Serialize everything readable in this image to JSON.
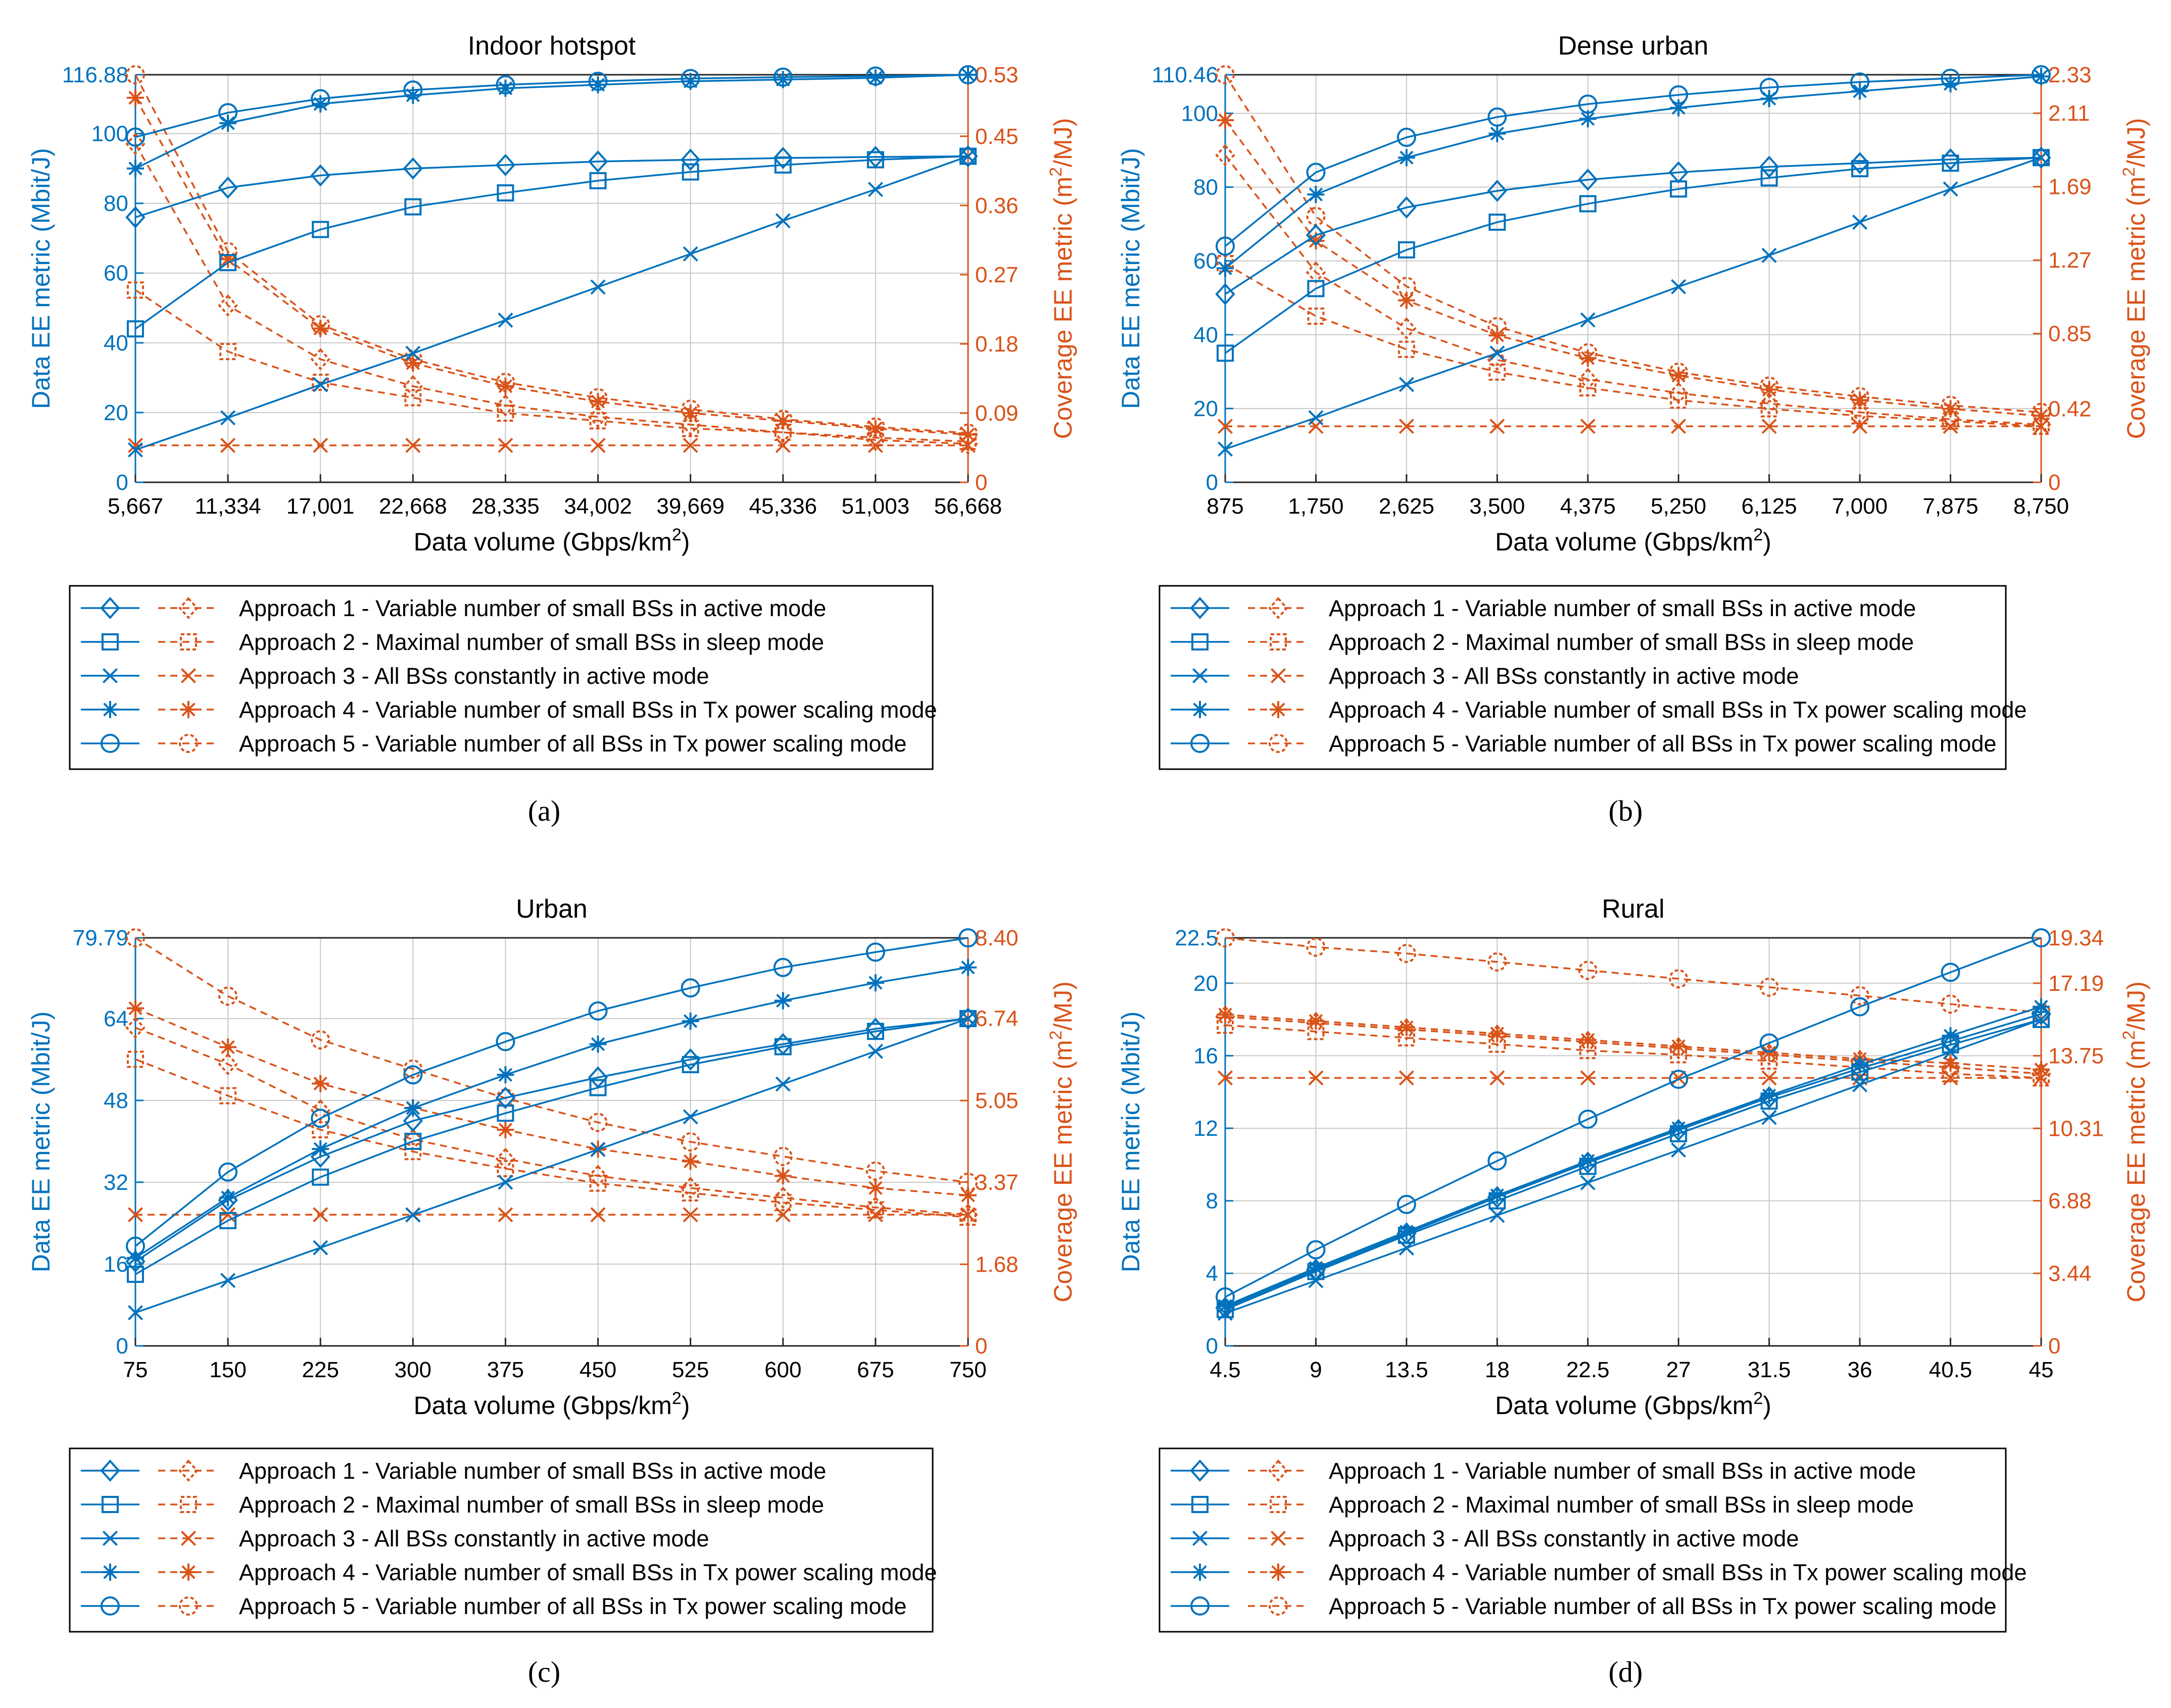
{
  "colors": {
    "data": "#0072BD",
    "coverage": "#D95319",
    "grid": "#c8c8c8",
    "axis": "#262626"
  },
  "legend_labels": [
    "Approach 1 - Variable number of small BSs in active mode",
    "Approach 2 - Maximal number of small BSs in sleep mode",
    "Approach 3 - All BSs constantly in active mode",
    "Approach 4 - Variable number of small BSs in Tx power scaling mode",
    "Approach 5 - Variable number of all BSs in Tx power scaling mode"
  ],
  "markers": [
    "diamond",
    "square",
    "x",
    "asterisk",
    "circle"
  ],
  "chart_data": [
    {
      "type": "line",
      "panel_label": "(a)",
      "title": "Indoor hotspot",
      "xlabel": "Data volume (Gbps/km",
      "xlabel_sup": "2",
      "xlabel_end": ")",
      "ylabel_left": "Data EE metric (Mbit/J)",
      "ylabel_right": "Coverage EE metric (m",
      "ylabel_right_sup": "2",
      "ylabel_right_end": "/MJ)",
      "categories": [
        "5,667",
        "11,334",
        "17,001",
        "22,668",
        "28,335",
        "34,002",
        "39,669",
        "45,336",
        "51,003",
        "56,668"
      ],
      "ylim_left": [
        0,
        116.88
      ],
      "yticks_left": [
        "0",
        "20",
        "40",
        "60",
        "80",
        "100",
        "116.88"
      ],
      "yticks_left_values": [
        0,
        20,
        40,
        60,
        80,
        100,
        116.88
      ],
      "ylim_right": [
        0,
        0.53
      ],
      "yticks_right": [
        "0",
        "0.09",
        "0.18",
        "0.27",
        "0.36",
        "0.45",
        "0.53"
      ],
      "yticks_right_values": [
        0,
        0.09,
        0.18,
        0.27,
        0.36,
        0.45,
        0.53
      ],
      "series_data": [
        {
          "name": "Approach 1",
          "values": [
            76,
            84.5,
            88,
            90,
            91,
            92,
            92.5,
            93,
            93.3,
            93.5
          ]
        },
        {
          "name": "Approach 2",
          "values": [
            44,
            63,
            72.5,
            79,
            83,
            86.5,
            89,
            91,
            92.5,
            93.5
          ]
        },
        {
          "name": "Approach 3",
          "values": [
            9.3,
            18.5,
            28,
            37,
            46.5,
            56,
            65.5,
            75,
            84,
            93.5
          ]
        },
        {
          "name": "Approach 4",
          "values": [
            90,
            103,
            108.5,
            111,
            113,
            114,
            115,
            115.5,
            116,
            116.88
          ]
        },
        {
          "name": "Approach 5",
          "values": [
            99,
            106,
            110,
            112.5,
            114,
            115,
            115.8,
            116.2,
            116.5,
            116.88
          ]
        }
      ],
      "series_coverage": [
        {
          "name": "Approach 1",
          "values": [
            0.44,
            0.23,
            0.16,
            0.125,
            0.1,
            0.085,
            0.075,
            0.065,
            0.055,
            0.05
          ]
        },
        {
          "name": "Approach 2",
          "values": [
            0.25,
            0.17,
            0.13,
            0.11,
            0.09,
            0.08,
            0.07,
            0.065,
            0.058,
            0.053
          ]
        },
        {
          "name": "Approach 3",
          "values": [
            0.048,
            0.048,
            0.048,
            0.048,
            0.048,
            0.048,
            0.048,
            0.048,
            0.048,
            0.048
          ]
        },
        {
          "name": "Approach 4",
          "values": [
            0.5,
            0.29,
            0.2,
            0.155,
            0.125,
            0.105,
            0.09,
            0.08,
            0.07,
            0.062
          ]
        },
        {
          "name": "Approach 5",
          "values": [
            0.53,
            0.3,
            0.205,
            0.16,
            0.13,
            0.11,
            0.095,
            0.082,
            0.072,
            0.064
          ]
        }
      ]
    },
    {
      "type": "line",
      "panel_label": "(b)",
      "title": "Dense urban",
      "xlabel": "Data volume (Gbps/km",
      "xlabel_sup": "2",
      "xlabel_end": ")",
      "ylabel_left": "Data EE metric (Mbit/J)",
      "ylabel_right": "Coverage EE metric (m",
      "ylabel_right_sup": "2",
      "ylabel_right_end": "/MJ)",
      "categories": [
        "875",
        "1,750",
        "2,625",
        "3,500",
        "4,375",
        "5,250",
        "6,125",
        "7,000",
        "7,875",
        "8,750"
      ],
      "ylim_left": [
        0,
        110.46
      ],
      "yticks_left": [
        "0",
        "20",
        "40",
        "60",
        "80",
        "100",
        "110.46"
      ],
      "yticks_left_values": [
        0,
        20,
        40,
        60,
        80,
        100,
        110.46
      ],
      "ylim_right": [
        0,
        2.33
      ],
      "yticks_right": [
        "0",
        "0.42",
        "0.85",
        "1.27",
        "1.69",
        "2.11",
        "2.33"
      ],
      "yticks_right_values": [
        0,
        0.42,
        0.85,
        1.27,
        1.69,
        2.11,
        2.33
      ],
      "series_data": [
        {
          "name": "Approach 1",
          "values": [
            51,
            67,
            74.5,
            79,
            82,
            84,
            85.5,
            86.5,
            87.5,
            88
          ]
        },
        {
          "name": "Approach 2",
          "values": [
            35,
            52.5,
            63,
            70.5,
            75.5,
            79.5,
            82.5,
            85,
            86.5,
            88
          ]
        },
        {
          "name": "Approach 3",
          "values": [
            9,
            17.5,
            26.5,
            35,
            44,
            53,
            61.5,
            70.5,
            79.5,
            88
          ]
        },
        {
          "name": "Approach 4",
          "values": [
            58,
            78,
            88,
            94.5,
            98.5,
            101.5,
            104,
            106,
            108,
            110
          ]
        },
        {
          "name": "Approach 5",
          "values": [
            64,
            84,
            93.5,
            99,
            102.5,
            105,
            107,
            108.5,
            109.5,
            110.46
          ]
        }
      ],
      "series_coverage": [
        {
          "name": "Approach 1",
          "values": [
            1.87,
            1.2,
            0.88,
            0.7,
            0.59,
            0.51,
            0.45,
            0.4,
            0.36,
            0.33
          ]
        },
        {
          "name": "Approach 2",
          "values": [
            1.25,
            0.95,
            0.76,
            0.63,
            0.54,
            0.47,
            0.42,
            0.38,
            0.35,
            0.32
          ]
        },
        {
          "name": "Approach 3",
          "values": [
            0.32,
            0.32,
            0.32,
            0.32,
            0.32,
            0.32,
            0.32,
            0.32,
            0.32,
            0.32
          ]
        },
        {
          "name": "Approach 4",
          "values": [
            2.07,
            1.38,
            1.04,
            0.84,
            0.71,
            0.61,
            0.53,
            0.47,
            0.42,
            0.38
          ]
        },
        {
          "name": "Approach 5",
          "values": [
            2.33,
            1.52,
            1.12,
            0.89,
            0.74,
            0.63,
            0.55,
            0.49,
            0.44,
            0.4
          ]
        }
      ]
    },
    {
      "type": "line",
      "panel_label": "(c)",
      "title": "Urban",
      "xlabel": "Data volume (Gbps/km",
      "xlabel_sup": "2",
      "xlabel_end": ")",
      "ylabel_left": "Data EE metric (Mbit/J)",
      "ylabel_right": "Coverage EE metric (m",
      "ylabel_right_sup": "2",
      "ylabel_right_end": "/MJ)",
      "categories": [
        "75",
        "150",
        "225",
        "300",
        "375",
        "450",
        "525",
        "600",
        "675",
        "750"
      ],
      "ylim_left": [
        0,
        79.79
      ],
      "yticks_left": [
        "0",
        "16",
        "32",
        "48",
        "64",
        "79.79"
      ],
      "yticks_left_values": [
        0,
        16,
        32,
        48,
        64,
        79.79
      ],
      "ylim_right": [
        0,
        8.4
      ],
      "yticks_right": [
        "0",
        "1.68",
        "3.37",
        "5.05",
        "6.74",
        "8.40"
      ],
      "yticks_right_values": [
        0,
        1.68,
        3.37,
        5.05,
        6.74,
        8.4
      ],
      "series_data": [
        {
          "name": "Approach 1",
          "values": [
            16.5,
            28.5,
            37,
            44,
            48.5,
            52.5,
            56,
            59,
            62,
            64
          ]
        },
        {
          "name": "Approach 2",
          "values": [
            14,
            24.5,
            33,
            40,
            45.5,
            50.5,
            55,
            58.5,
            61.5,
            64
          ]
        },
        {
          "name": "Approach 3",
          "values": [
            6.5,
            12.8,
            19.2,
            25.6,
            32,
            38.4,
            44.8,
            51.2,
            57.6,
            64
          ]
        },
        {
          "name": "Approach 4",
          "values": [
            17.2,
            29,
            38.5,
            46.5,
            53,
            59,
            63.5,
            67.5,
            71,
            74
          ]
        },
        {
          "name": "Approach 5",
          "values": [
            19.5,
            34,
            44.5,
            53,
            59.5,
            65.5,
            70,
            74,
            77,
            79.79
          ]
        }
      ],
      "series_coverage": [
        {
          "name": "Approach 1",
          "values": [
            6.55,
            5.8,
            4.85,
            4.25,
            3.85,
            3.5,
            3.25,
            3.05,
            2.85,
            2.7
          ]
        },
        {
          "name": "Approach 2",
          "values": [
            5.9,
            5.15,
            4.45,
            4.0,
            3.65,
            3.35,
            3.15,
            2.95,
            2.8,
            2.65
          ]
        },
        {
          "name": "Approach 3",
          "values": [
            2.7,
            2.7,
            2.7,
            2.7,
            2.7,
            2.7,
            2.7,
            2.7,
            2.7,
            2.7
          ]
        },
        {
          "name": "Approach 4",
          "values": [
            6.95,
            6.15,
            5.4,
            4.9,
            4.45,
            4.05,
            3.8,
            3.5,
            3.25,
            3.1
          ]
        },
        {
          "name": "Approach 5",
          "values": [
            8.4,
            7.2,
            6.3,
            5.7,
            5.1,
            4.6,
            4.2,
            3.9,
            3.6,
            3.37
          ]
        }
      ]
    },
    {
      "type": "line",
      "panel_label": "(d)",
      "title": "Rural",
      "xlabel": "Data volume (Gbps/km",
      "xlabel_sup": "2",
      "xlabel_end": ")",
      "ylabel_left": "Data EE metric (Mbit/J)",
      "ylabel_right": "Coverage EE metric (m",
      "ylabel_right_sup": "2",
      "ylabel_right_end": "/MJ)",
      "categories": [
        "4.5",
        "9",
        "13.5",
        "18",
        "22.5",
        "27",
        "31.5",
        "36",
        "40.5",
        "45"
      ],
      "ylim_left": [
        0,
        22.5
      ],
      "yticks_left": [
        "0",
        "4",
        "8",
        "12",
        "16",
        "20",
        "22.5"
      ],
      "yticks_left_values": [
        0,
        4,
        8,
        12,
        16,
        20,
        22.5
      ],
      "ylim_right": [
        0,
        19.34
      ],
      "yticks_right": [
        "0",
        "3.44",
        "6.88",
        "10.31",
        "13.75",
        "17.19",
        "19.34"
      ],
      "yticks_right_values": [
        0,
        3.44,
        6.88,
        10.31,
        13.75,
        17.19,
        19.34
      ],
      "series_data": [
        {
          "name": "Approach 1",
          "values": [
            2.1,
            4.2,
            6.2,
            8.2,
            10.1,
            11.9,
            13.7,
            15.3,
            16.8,
            18.3
          ]
        },
        {
          "name": "Approach 2",
          "values": [
            2.0,
            4.1,
            6.1,
            8.0,
            9.9,
            11.7,
            13.5,
            15.1,
            16.6,
            18.0
          ]
        },
        {
          "name": "Approach 3",
          "values": [
            1.8,
            3.6,
            5.4,
            7.2,
            9.0,
            10.8,
            12.6,
            14.4,
            16.2,
            18.0
          ]
        },
        {
          "name": "Approach 4",
          "values": [
            2.2,
            4.3,
            6.3,
            8.3,
            10.2,
            12.0,
            13.8,
            15.5,
            17.1,
            18.7
          ]
        },
        {
          "name": "Approach 5",
          "values": [
            2.7,
            5.3,
            7.8,
            10.2,
            12.5,
            14.7,
            16.7,
            18.7,
            20.6,
            22.5
          ]
        }
      ],
      "series_coverage": [
        {
          "name": "Approach 1",
          "values": [
            15.6,
            15.3,
            15.0,
            14.7,
            14.4,
            14.1,
            13.8,
            13.5,
            13.2,
            12.9
          ]
        },
        {
          "name": "Approach 2",
          "values": [
            15.2,
            14.9,
            14.6,
            14.3,
            14.0,
            13.8,
            13.5,
            13.2,
            12.9,
            12.7
          ]
        },
        {
          "name": "Approach 3",
          "values": [
            12.7,
            12.7,
            12.7,
            12.7,
            12.7,
            12.7,
            12.7,
            12.7,
            12.7,
            12.7
          ]
        },
        {
          "name": "Approach 4",
          "values": [
            15.7,
            15.4,
            15.1,
            14.8,
            14.5,
            14.2,
            13.9,
            13.6,
            13.4,
            13.1
          ]
        },
        {
          "name": "Approach 5",
          "values": [
            19.34,
            18.9,
            18.6,
            18.2,
            17.8,
            17.4,
            17.0,
            16.6,
            16.2,
            15.8
          ]
        }
      ]
    }
  ]
}
